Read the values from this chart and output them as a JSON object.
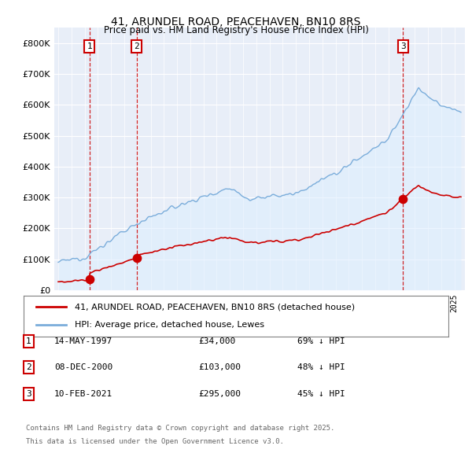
{
  "title": "41, ARUNDEL ROAD, PEACEHAVEN, BN10 8RS",
  "subtitle": "Price paid vs. HM Land Registry's House Price Index (HPI)",
  "transactions": [
    {
      "num": 1,
      "date_label": "14-MAY-1997",
      "price": 34000,
      "price_str": "£34,000",
      "pct": "69% ↓ HPI",
      "date_x": 1997.37
    },
    {
      "num": 2,
      "date_label": "08-DEC-2000",
      "price": 103000,
      "price_str": "£103,000",
      "pct": "48% ↓ HPI",
      "date_x": 2000.93
    },
    {
      "num": 3,
      "date_label": "10-FEB-2021",
      "price": 295000,
      "price_str": "£295,000",
      "pct": "45% ↓ HPI",
      "date_x": 2021.11
    }
  ],
  "legend_line1": "41, ARUNDEL ROAD, PEACEHAVEN, BN10 8RS (detached house)",
  "legend_line2": "HPI: Average price, detached house, Lewes",
  "footnote1": "Contains HM Land Registry data © Crown copyright and database right 2025.",
  "footnote2": "This data is licensed under the Open Government Licence v3.0.",
  "price_color": "#cc0000",
  "hpi_color": "#7aaddb",
  "hpi_fill_color": "#ddeeff",
  "background_color": "#e8eef8",
  "ylim": [
    0,
    850000
  ],
  "xlim_start": 1994.7,
  "xlim_end": 2025.8
}
